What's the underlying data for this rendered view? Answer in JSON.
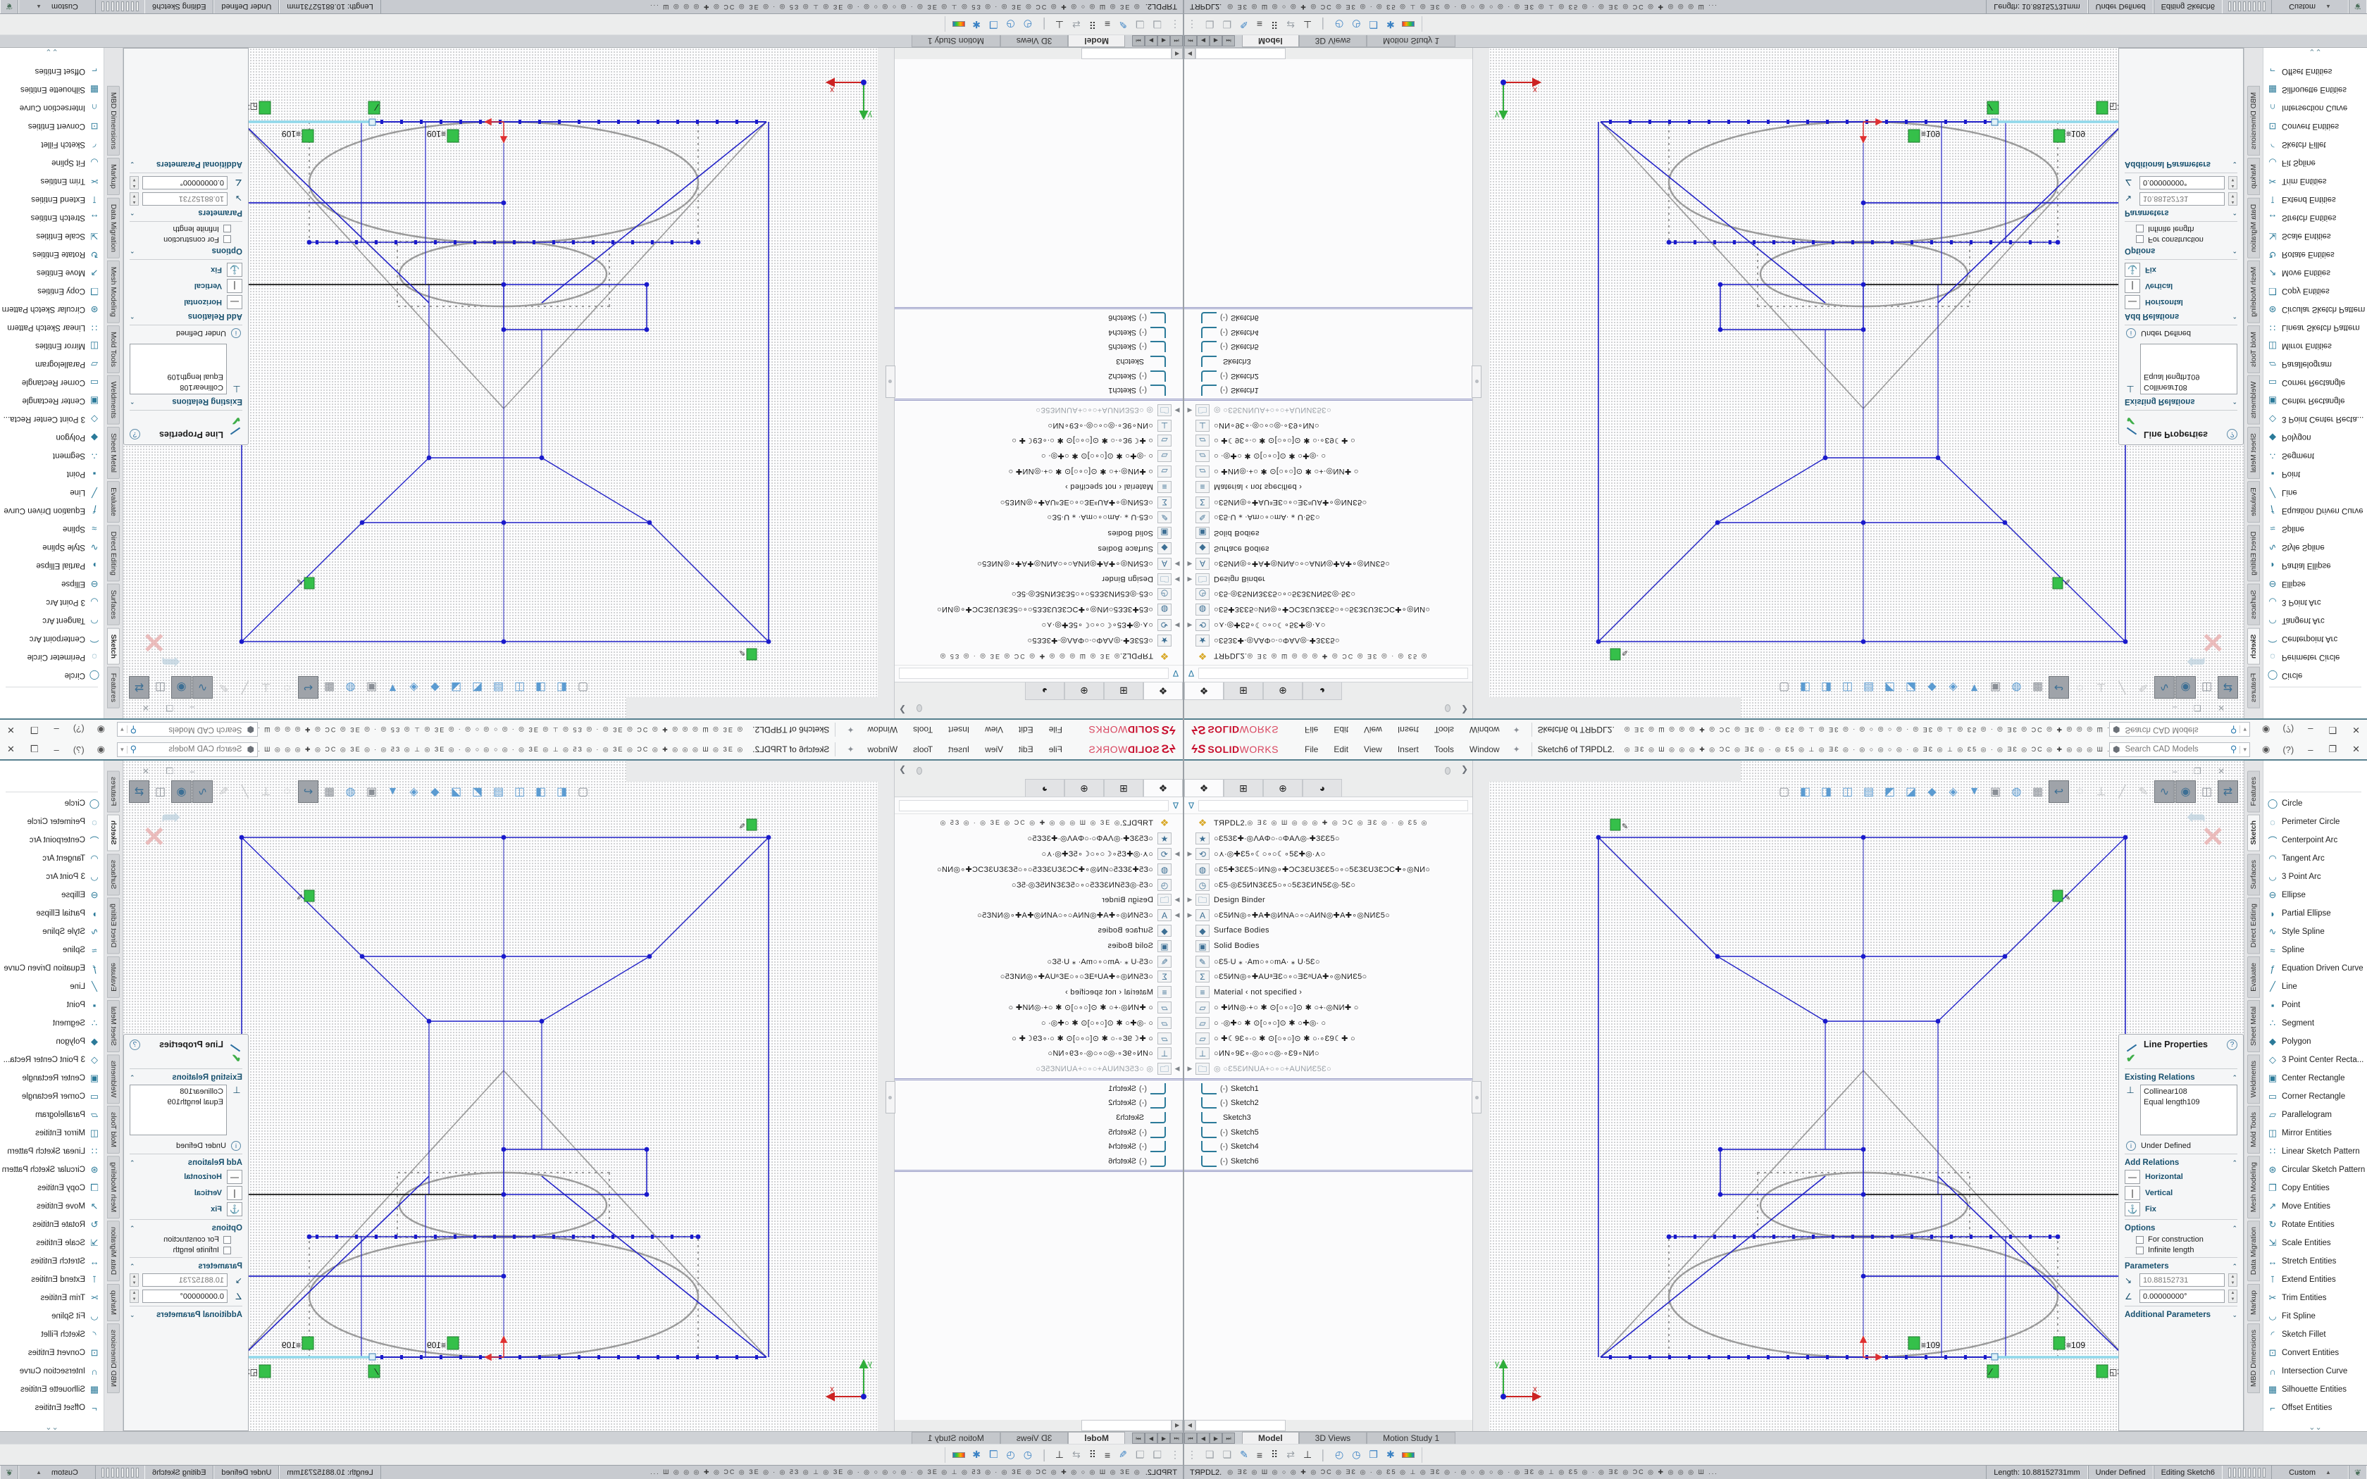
{
  "accent_colors": {
    "logo_red": "#c8102e",
    "teal_border": "#57808f",
    "sketch_blue": "#2323c8",
    "construction_gray": "#9a9a9a",
    "selected_cyan": "#8fd8ea",
    "relation_green": "#35c04a"
  },
  "menu": {
    "logo_ds": "ϟS",
    "logo_solid": "SOLID",
    "logo_works": "WORKS",
    "items": [
      {
        "label": "File"
      },
      {
        "label": "Edit"
      },
      {
        "label": "View"
      },
      {
        "label": "Insert"
      },
      {
        "label": "Tools"
      },
      {
        "label": "Window"
      }
    ],
    "pin": "✦",
    "doc_title": "Sketch6 of TЯPDL2.",
    "qat_garbled": "◎ ƎƐ ◎ Ш ◎ ◎ ◎ ✚ ◎ ƆC ◎ ƎƐ ◎ ∙ ◎ Ɛ5 ◎ ⊥ ◎ ƎƐ ◎ ∙ ◎ ○ ◎ ○ ◎ ∙ ◎ ƎƐ ◎ ⊥ ◎ Ɛ5 ◎ ∙ ◎ ƎƐ ◎ ƆC ◎ ✚ ◎ ◎ ◎ Ш ...",
    "search": {
      "placeholder": "Search CAD Models",
      "cube": "⬢",
      "mag": "🔍",
      "drop": "▾"
    },
    "user_icon": "◉",
    "help_icon": "?",
    "min": "–",
    "restore": "❐",
    "close": "✕"
  },
  "tree": {
    "tabs": [
      {
        "g": "❖",
        "cls": "tree-tab active"
      },
      {
        "g": "⊞",
        "cls": "tree-tab"
      },
      {
        "g": "⊕",
        "cls": "tree-tab"
      },
      {
        "g": "◕",
        "cls": "tree-tab"
      }
    ],
    "flyout": "❯",
    "funnel": "∇",
    "root": {
      "label": "TЯPDL2.",
      "garbled": "   ◎ ƎƐ ◎ Ш ◎ ◎ ◎ ✚ ◎ ƆC ◎ ƎƐ ◎ ∙ ◎ Ɛ5 ◎"
    },
    "items": [
      {
        "arrow": "",
        "ico": "★",
        "label": "○Ɛ53Ɛ✚∙◎ΛAΦ○∙○ΦAΛ◎∙✚3ƐƐ5○",
        "cls": "tree-row"
      },
      {
        "arrow": "▶",
        "ico": "⟲",
        "label": "○⋏∙◎✚Ɛ5∘☾○∘○☾∘5Ɛ✚◎∙⋏○",
        "cls": "tree-row"
      },
      {
        "arrow": "",
        "ico": "◍",
        "label": "○Ɛ5✚3ƐƐ5○ИN◎∘✚ƆC3ƐU3ƐƐ5○∘○5Ɛ3ƐU3ƐƆC✚∘◎NИ○",
        "cls": "tree-row"
      },
      {
        "arrow": "",
        "ico": "◷",
        "label": "○Ɛ5∙◎Ɛ5ИN3ƐƐ5○∘○5Ɛ3ƐИN5Ɛ◎∙5Ɛ○",
        "cls": "tree-row"
      },
      {
        "arrow": "▶",
        "ico": "🗀",
        "label": "Design Binder",
        "cls": "tree-row"
      },
      {
        "arrow": "▶",
        "ico": "A",
        "label": "○Ɛ5ИN◎∘✚A✚◎ИNA○∘○AИN◎✚A✚∘◎NИƐ5○",
        "cls": "tree-row"
      },
      {
        "arrow": "",
        "ico": "◆",
        "label": "Surface Bodies",
        "cls": "tree-row"
      },
      {
        "arrow": "",
        "ico": "▣",
        "label": "Solid Bodies",
        "cls": "tree-row"
      },
      {
        "arrow": "",
        "ico": "✎",
        "label": "○Ɛ5∙U ⁎ ∙Am○∘○mA∙ ⁎ U∙5Ɛ○",
        "cls": "tree-row"
      },
      {
        "arrow": "",
        "ico": "Σ",
        "label": "○Ɛ5ИN◎∘✚AUᵃƎƐ○∘○ƎƐᵃUA✚∘◎NИƐ5○",
        "cls": "tree-row"
      },
      {
        "arrow": "",
        "ico": "≡",
        "label": "Material  ‹ not specified ›",
        "cls": "tree-row"
      },
      {
        "arrow": "",
        "ico": "▱",
        "label": "○ ✚ИN◎∙+○ ✱ ⊙[○∘○]⊙ ✱ ○+∙◎NИ✚ ○",
        "cls": "tree-row"
      },
      {
        "arrow": "",
        "ico": "▱",
        "label": "○ ∙◎✚○ ✱ ⊙[○∘○]⊙ ✱ ○✚◎∙ ○",
        "cls": "tree-row"
      },
      {
        "arrow": "",
        "ico": "▱",
        "label": "○ ✚☾9Ɛ∘∙○ ✱ ⊙[○∘○]⊙ ✱ ○∙∘Ɛ9☾✚ ○",
        "cls": "tree-row"
      },
      {
        "arrow": "",
        "ico": "⊥",
        "label": "○ИN∘9Ɛ∘∙◎○∘○◎∙∘Ɛ9∘NИ○",
        "cls": "tree-row"
      },
      {
        "arrow": "▶",
        "ico": "🗀",
        "label": "◎  ○Ɛ5ƐИNUA+○∘○+AUNИƐ5Ɛ○",
        "cls": "tree-row muted"
      }
    ],
    "sketches": [
      {
        "pre": "(-)",
        "label": "Sketch1"
      },
      {
        "pre": "(-)",
        "label": "Sketch2"
      },
      {
        "pre": "",
        "label": "Sketch3"
      },
      {
        "pre": "(-)",
        "label": "Sketch5"
      },
      {
        "pre": "(-)",
        "label": "Sketch4"
      },
      {
        "pre": "(-)",
        "label": "Sketch6"
      }
    ],
    "scroll_arrow": "◀"
  },
  "hud_icons": [
    {
      "g": "▢",
      "cls": "hud-ico g"
    },
    {
      "g": "◧",
      "cls": "hud-ico b"
    },
    {
      "g": "◨",
      "cls": "hud-ico b"
    },
    {
      "g": "◫",
      "cls": "hud-ico b"
    },
    {
      "g": "▤",
      "cls": "hud-ico b"
    },
    {
      "g": "◩",
      "cls": "hud-ico b"
    },
    {
      "g": "◪",
      "cls": "hud-ico b"
    },
    {
      "g": "◆",
      "cls": "hud-ico b"
    },
    {
      "g": "◈",
      "cls": "hud-ico b"
    },
    {
      "g": "▼",
      "cls": "hud-ico b"
    },
    {
      "g": "▣",
      "cls": "hud-ico g"
    },
    {
      "g": "◍",
      "cls": "hud-ico b"
    },
    {
      "g": "▦",
      "cls": "hud-ico g"
    },
    {
      "g": "↩",
      "cls": "hud-ico p"
    },
    {
      "g": "◌",
      "cls": "hud-ico f"
    },
    {
      "g": "⊥",
      "cls": "hud-ico f"
    },
    {
      "g": "╱",
      "cls": "hud-ico f"
    },
    {
      "g": "✎",
      "cls": "hud-ico f"
    },
    {
      "g": "∿",
      "cls": "hud-ico p"
    },
    {
      "g": "◉",
      "cls": "hud-ico p"
    },
    {
      "g": "◫",
      "cls": "hud-ico g"
    },
    {
      "g": "⇄",
      "cls": "hud-ico p"
    },
    {
      "g": "⌗",
      "cls": "hud-ico g"
    },
    {
      "g": "◐",
      "cls": "hud-ico g"
    },
    {
      "g": "▩",
      "cls": "hud-ico p"
    },
    {
      "g": "●",
      "cls": "hud-ico b"
    },
    {
      "g": "◎",
      "cls": "hud-ico g"
    },
    {
      "g": "▢",
      "cls": "hud-ico g"
    }
  ],
  "graphics": {
    "mdi_buttons": "– ❐ ✕",
    "ghost_arrow": "➦",
    "ghost_x": "✕",
    "tags": {
      "eq_left": "≡109",
      "eq_right": "≡109",
      "collinear": "⁄",
      "three": "◱3",
      "axis_x": "x",
      "axis_y": "y"
    }
  },
  "pm": {
    "title": "Line Properties",
    "help": "?",
    "check": "✔",
    "sec_existing": "Existing Relations",
    "rel_icon": "⊥",
    "relations": [
      {
        "label": "Collinear108"
      },
      {
        "label": "Equal length109"
      }
    ],
    "status_icon": "i",
    "status": "Under Defined",
    "sec_add": "Add Relations",
    "add_relations": [
      {
        "bx": "—",
        "label": "Horizontal"
      },
      {
        "bx": "❘",
        "label": "Vertical"
      },
      {
        "bx": "⚓",
        "label": "Fix"
      }
    ],
    "sec_options": "Options",
    "options": [
      {
        "label": "For construction"
      },
      {
        "label": "Infinite length"
      }
    ],
    "sec_params": "Parameters",
    "params": [
      {
        "ico": "↘",
        "value": "10.88152731",
        "cls": "pm-input"
      },
      {
        "ico": "∠",
        "value": "0.00000000°",
        "cls": "pm-input en"
      }
    ],
    "sec_additional": "Additional Parameters",
    "chev_up": "⌃",
    "chev_down": "⌄"
  },
  "cmd_tabs": [
    {
      "label": "Features",
      "cls": "vtab"
    },
    {
      "label": "Sketch",
      "cls": "vtab active"
    },
    {
      "label": "Surfaces",
      "cls": "vtab"
    },
    {
      "label": "Direct Editing",
      "cls": "vtab"
    },
    {
      "label": "Evaluate",
      "cls": "vtab"
    },
    {
      "label": "Sheet Metal",
      "cls": "vtab"
    },
    {
      "label": "Weldments",
      "cls": "vtab"
    },
    {
      "label": "Mold Tools",
      "cls": "vtab"
    },
    {
      "label": "Mesh Modeling",
      "cls": "vtab"
    },
    {
      "label": "Data Migration",
      "cls": "vtab"
    },
    {
      "label": "Markup",
      "cls": "vtab"
    },
    {
      "label": "MBD Dimensions",
      "cls": "vtab"
    }
  ],
  "tools": [
    {
      "g": "◯",
      "label": "Circle"
    },
    {
      "g": "◌",
      "label": "Perimeter Circle"
    },
    {
      "g": "⌒",
      "label": "Centerpoint Arc"
    },
    {
      "g": "◠",
      "label": "Tangent Arc"
    },
    {
      "g": "◡",
      "label": "3 Point Arc"
    },
    {
      "g": "⊖",
      "label": "Ellipse"
    },
    {
      "g": "◗",
      "label": "Partial Ellipse"
    },
    {
      "g": "∿",
      "label": "Style Spline"
    },
    {
      "g": "≈",
      "label": "Spline"
    },
    {
      "g": "ƒ",
      "label": "Equation Driven Curve"
    },
    {
      "g": "╱",
      "label": "Line"
    },
    {
      "g": "▪",
      "label": "Point"
    },
    {
      "g": "∴",
      "label": "Segment"
    },
    {
      "g": "◆",
      "label": "Polygon"
    },
    {
      "g": "◇",
      "label": "3 Point Center Recta..."
    },
    {
      "g": "▣",
      "label": "Center Rectangle"
    },
    {
      "g": "▭",
      "label": "Corner Rectangle"
    },
    {
      "g": "▱",
      "label": "Parallelogram"
    },
    {
      "g": "◫",
      "label": "Mirror Entities"
    },
    {
      "g": "∷",
      "label": "Linear Sketch Pattern"
    },
    {
      "g": "⊛",
      "label": "Circular Sketch Pattern"
    },
    {
      "g": "❐",
      "label": "Copy Entities"
    },
    {
      "g": "↗",
      "label": "Move Entities"
    },
    {
      "g": "↻",
      "label": "Rotate Entities"
    },
    {
      "g": "⇲",
      "label": "Scale Entities"
    },
    {
      "g": "↔",
      "label": "Stretch Entities"
    },
    {
      "g": "⊺",
      "label": "Extend Entities"
    },
    {
      "g": "✂",
      "label": "Trim Entities"
    },
    {
      "g": "◡",
      "label": "Fit Spline"
    },
    {
      "g": "◜",
      "label": "Sketch Fillet"
    },
    {
      "g": "⊡",
      "label": "Convert Entities"
    },
    {
      "g": "∩",
      "label": "Intersection Curve"
    },
    {
      "g": "▦",
      "label": "Silhouette Entities"
    },
    {
      "g": "⌐",
      "label": "Offset Entities"
    }
  ],
  "tool_more": "⌄⌄",
  "doc_tabs": [
    {
      "label": "Model",
      "cls": "dtab active"
    },
    {
      "label": "3D Views",
      "cls": "dtab"
    },
    {
      "label": "Motion Study 1",
      "cls": "dtab"
    }
  ],
  "doc_nav": [
    {
      "g": "⏮"
    },
    {
      "g": "◀"
    },
    {
      "g": "▶"
    },
    {
      "g": "⏭"
    }
  ],
  "bottom_icons": [
    {
      "g": "⋮",
      "cls": "bb-ico gray"
    },
    {
      "g": "❏",
      "cls": "bb-ico gray"
    },
    {
      "g": "❏",
      "cls": "bb-ico gray"
    },
    {
      "g": "✎",
      "cls": "bb-ico blue"
    },
    {
      "g": "≡",
      "cls": "bb-ico dark"
    },
    {
      "g": "⠿",
      "cls": "bb-ico dark"
    },
    {
      "g": "⇄",
      "cls": "bb-ico gray"
    },
    {
      "g": "⊥",
      "cls": "bb-ico dark"
    },
    {
      "g": "│",
      "cls": "bb-ico gray"
    },
    {
      "g": "◴",
      "cls": "bb-ico blue"
    },
    {
      "g": "◷",
      "cls": "bb-ico blue"
    },
    {
      "g": "❐",
      "cls": "bb-ico blue"
    },
    {
      "g": "✱",
      "cls": "bb-ico blue"
    }
  ],
  "status": {
    "part": "TЯPDL2.",
    "garbled": "◎ ƎƐ ◎ Ш ◎ ○ ◎ ✚ ◎ ƆC ◎ ƎƐ ◎ ∙ ◎ Ɛ5 ◎ ⊥ ◎ ƎƐ ◎ ∙ ◎ ○ ◎ ○ ◎ ∙ ◎ ƎƐ ◎ ⊥ ◎ Ɛ5 ◎ ∙ ◎ ƎƐ ◎ ƆC ◎ ✚ ◎ ◎ ◎ Ш ...",
    "length": "Length: 10.88152731mm",
    "state": "Under Defined",
    "editing": "Editing  Sketch6",
    "custom": "Custom",
    "caret": "▲",
    "globe": "❦"
  }
}
